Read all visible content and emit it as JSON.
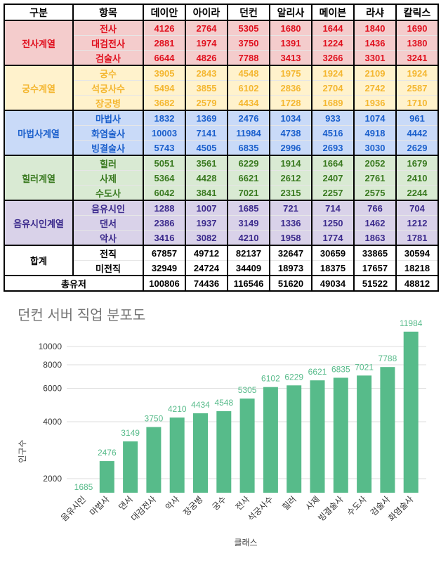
{
  "table": {
    "headers": [
      "구분",
      "항목",
      "데이안",
      "아이라",
      "던컨",
      "알리사",
      "메이븐",
      "라샤",
      "칼릭스"
    ],
    "groups": [
      {
        "name": "전사계열",
        "bg": "#f4cccc",
        "color": "#e0101e",
        "rows": [
          {
            "item": "전사",
            "values": [
              "4126",
              "2764",
              "5305",
              "1680",
              "1644",
              "1840",
              "1690"
            ]
          },
          {
            "item": "대검전사",
            "values": [
              "2881",
              "1974",
              "3750",
              "1391",
              "1224",
              "1436",
              "1380"
            ]
          },
          {
            "item": "검술사",
            "values": [
              "6644",
              "4826",
              "7788",
              "3413",
              "3266",
              "3301",
              "3241"
            ]
          }
        ]
      },
      {
        "name": "궁수계열",
        "bg": "#fff2cc",
        "color": "#f4b731",
        "rows": [
          {
            "item": "궁수",
            "values": [
              "3905",
              "2843",
              "4548",
              "1975",
              "1924",
              "2109",
              "1924"
            ]
          },
          {
            "item": "석궁사수",
            "values": [
              "5494",
              "3855",
              "6102",
              "2836",
              "2704",
              "2742",
              "2587"
            ]
          },
          {
            "item": "장궁병",
            "values": [
              "3682",
              "2579",
              "4434",
              "1728",
              "1689",
              "1936",
              "1710"
            ]
          }
        ]
      },
      {
        "name": "마법사계열",
        "bg": "#c9daf8",
        "color": "#1a5fcc",
        "rows": [
          {
            "item": "마법사",
            "values": [
              "1832",
              "1369",
              "2476",
              "1034",
              "933",
              "1074",
              "961"
            ]
          },
          {
            "item": "화염술사",
            "values": [
              "10003",
              "7141",
              "11984",
              "4738",
              "4516",
              "4918",
              "4442"
            ]
          },
          {
            "item": "빙결술사",
            "values": [
              "5743",
              "4505",
              "6835",
              "2996",
              "2693",
              "3030",
              "2629"
            ]
          }
        ]
      },
      {
        "name": "힐러계열",
        "bg": "#d9ead3",
        "color": "#3a7a20",
        "rows": [
          {
            "item": "힐러",
            "values": [
              "5051",
              "3561",
              "6229",
              "1914",
              "1664",
              "2052",
              "1679"
            ]
          },
          {
            "item": "사제",
            "values": [
              "5364",
              "4428",
              "6621",
              "2612",
              "2407",
              "2761",
              "2410"
            ]
          },
          {
            "item": "수도사",
            "values": [
              "6042",
              "3841",
              "7021",
              "2315",
              "2257",
              "2575",
              "2244"
            ]
          }
        ]
      },
      {
        "name": "음유시인계열",
        "bg": "#d9d2e9",
        "color": "#3b2a8c",
        "rows": [
          {
            "item": "음유시인",
            "values": [
              "1288",
              "1007",
              "1685",
              "721",
              "714",
              "766",
              "704"
            ]
          },
          {
            "item": "댄서",
            "values": [
              "2386",
              "1937",
              "3149",
              "1336",
              "1250",
              "1462",
              "1212"
            ]
          },
          {
            "item": "악사",
            "values": [
              "3416",
              "3082",
              "4210",
              "1958",
              "1774",
              "1863",
              "1781"
            ]
          }
        ]
      },
      {
        "name": "합계",
        "bg": "#ffffff",
        "color": "#000000",
        "rows": [
          {
            "item": "전직",
            "values": [
              "67857",
              "49712",
              "82137",
              "32647",
              "30659",
              "33865",
              "30594"
            ]
          },
          {
            "item": "미전직",
            "values": [
              "32949",
              "24724",
              "34409",
              "18973",
              "18375",
              "17657",
              "18218"
            ]
          }
        ]
      }
    ],
    "total": {
      "label": "총유저",
      "values": [
        "100806",
        "74436",
        "116546",
        "51620",
        "49034",
        "51522",
        "48812"
      ]
    }
  },
  "chart_data": {
    "type": "bar",
    "title": "던컨 서버 직업 분포도",
    "xlabel": "클래스",
    "ylabel": "인구수",
    "yscale": "log",
    "ylim": [
      1685,
      13000
    ],
    "yticks": [
      2000,
      4000,
      6000,
      8000,
      10000
    ],
    "grid": true,
    "bar_color": "#57bb8a",
    "label_color": "#57bb8a",
    "categories": [
      "음유시인",
      "마법사",
      "댄서",
      "대검전사",
      "악사",
      "장궁병",
      "궁수",
      "전사",
      "석궁사수",
      "힐러",
      "사제",
      "빙결술사",
      "수도사",
      "검술사",
      "화염술사"
    ],
    "values": [
      1685,
      2476,
      3149,
      3750,
      4210,
      4434,
      4548,
      5305,
      6102,
      6229,
      6621,
      6835,
      7021,
      7788,
      11984
    ]
  }
}
